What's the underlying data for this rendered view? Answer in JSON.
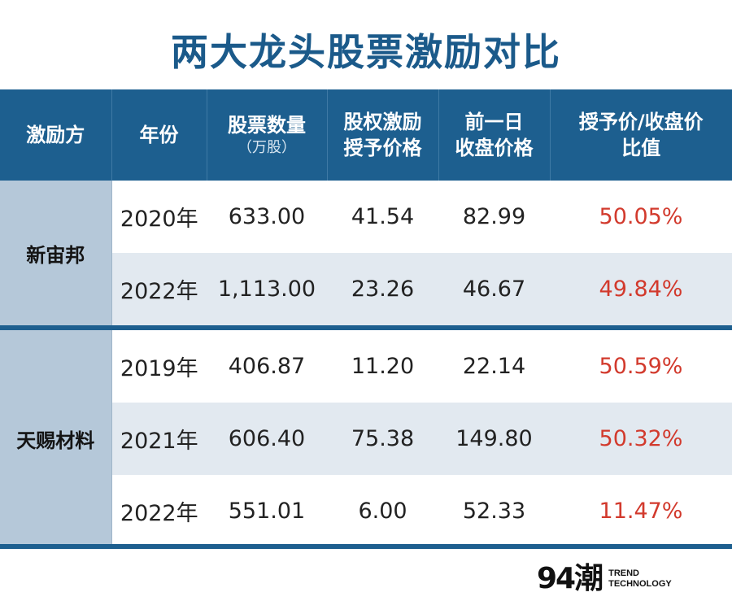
{
  "title": "两大龙头股票激励对比",
  "headers": {
    "c1": "激励方",
    "c2": "年份",
    "c3_line1": "股票数量",
    "c3_line2": "（万股）",
    "c4_line1": "股权激励",
    "c4_line2": "授予价格",
    "c5_line1": "前一日",
    "c5_line2": "收盘价格",
    "c6_line1": "授予价/收盘价",
    "c6_line2": "比值"
  },
  "groups": [
    {
      "name": "新宙邦",
      "rows": [
        {
          "year": "2020年",
          "shares": "633.00",
          "grant_price": "41.54",
          "close_price": "82.99",
          "ratio": "50.05%"
        },
        {
          "year": "2022年",
          "shares": "1,113.00",
          "grant_price": "23.26",
          "close_price": "46.67",
          "ratio": "49.84%"
        }
      ]
    },
    {
      "name": "天赐材料",
      "rows": [
        {
          "year": "2019年",
          "shares": "406.87",
          "grant_price": "11.20",
          "close_price": "22.14",
          "ratio": "50.59%"
        },
        {
          "year": "2021年",
          "shares": "606.40",
          "grant_price": "75.38",
          "close_price": "149.80",
          "ratio": "50.32%"
        },
        {
          "year": "2022年",
          "shares": "551.01",
          "grant_price": "6.00",
          "close_price": "52.33",
          "ratio": "11.47%"
        }
      ]
    }
  ],
  "logo": {
    "mark": "94潮",
    "line1": "TREND",
    "line2": "TECHNOLOGY"
  },
  "colors": {
    "header_bg": "#1d5f8f",
    "title": "#1b5a8a",
    "group_bg": "#b5c8d9",
    "stripe_bg": "#e2e9f0",
    "ratio": "#d23a2d"
  }
}
